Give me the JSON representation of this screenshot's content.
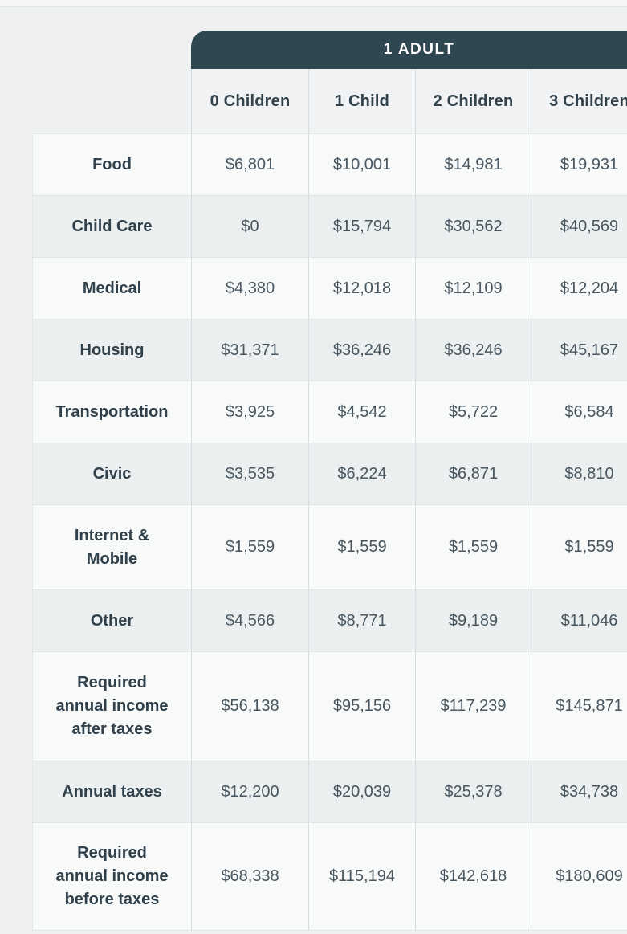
{
  "table": {
    "group_header": "1 ADULT",
    "columns": [
      "0 Children",
      "1 Child",
      "2 Children",
      "3 Children"
    ],
    "rows": [
      {
        "label": "Food",
        "values": [
          "$6,801",
          "$10,001",
          "$14,981",
          "$19,931"
        ]
      },
      {
        "label": "Child Care",
        "values": [
          "$0",
          "$15,794",
          "$30,562",
          "$40,569"
        ]
      },
      {
        "label": "Medical",
        "values": [
          "$4,380",
          "$12,018",
          "$12,109",
          "$12,204"
        ]
      },
      {
        "label": "Housing",
        "values": [
          "$31,371",
          "$36,246",
          "$36,246",
          "$45,167"
        ]
      },
      {
        "label": "Transportation",
        "values": [
          "$3,925",
          "$4,542",
          "$5,722",
          "$6,584"
        ]
      },
      {
        "label": "Civic",
        "values": [
          "$3,535",
          "$6,224",
          "$6,871",
          "$8,810"
        ]
      },
      {
        "label": "Internet & Mobile",
        "values": [
          "$1,559",
          "$1,559",
          "$1,559",
          "$1,559"
        ]
      },
      {
        "label": "Other",
        "values": [
          "$4,566",
          "$8,771",
          "$9,189",
          "$11,046"
        ]
      },
      {
        "label": "Required annual income after taxes",
        "values": [
          "$56,138",
          "$95,156",
          "$117,239",
          "$145,871"
        ]
      },
      {
        "label": "Annual taxes",
        "values": [
          "$12,200",
          "$20,039",
          "$25,378",
          "$34,738"
        ]
      },
      {
        "label": "Required annual income before taxes",
        "values": [
          "$68,338",
          "$115,194",
          "$142,618",
          "$180,609"
        ]
      }
    ],
    "colors": {
      "group_header_bg": "#2f4750",
      "group_header_text": "#ffffff",
      "column_header_bg": "#f0f2f3",
      "odd_row_bg": "#f8f9f9",
      "even_row_bg": "#eceff0",
      "label_text": "#30414c",
      "value_text": "#47565f"
    }
  },
  "chart_data": {
    "type": "table",
    "title": "1 ADULT",
    "columns": [
      "0 Children",
      "1 Child",
      "2 Children",
      "3 Children"
    ],
    "row_labels": [
      "Food",
      "Child Care",
      "Medical",
      "Housing",
      "Transportation",
      "Civic",
      "Internet & Mobile",
      "Other",
      "Required annual income after taxes",
      "Annual taxes",
      "Required annual income before taxes"
    ],
    "values": [
      [
        6801,
        10001,
        14981,
        19931
      ],
      [
        0,
        15794,
        30562,
        40569
      ],
      [
        4380,
        12018,
        12109,
        12204
      ],
      [
        31371,
        36246,
        36246,
        45167
      ],
      [
        3925,
        4542,
        5722,
        6584
      ],
      [
        3535,
        6224,
        6871,
        8810
      ],
      [
        1559,
        1559,
        1559,
        1559
      ],
      [
        4566,
        8771,
        9189,
        11046
      ],
      [
        56138,
        95156,
        117239,
        145871
      ],
      [
        12200,
        20039,
        25378,
        34738
      ],
      [
        68338,
        115194,
        142618,
        180609
      ]
    ],
    "units": "USD per year",
    "layout_hints": {
      "column_group_header_spans_value_columns": true,
      "right_edge_cropped": true,
      "alternating_row_shading": true
    }
  }
}
